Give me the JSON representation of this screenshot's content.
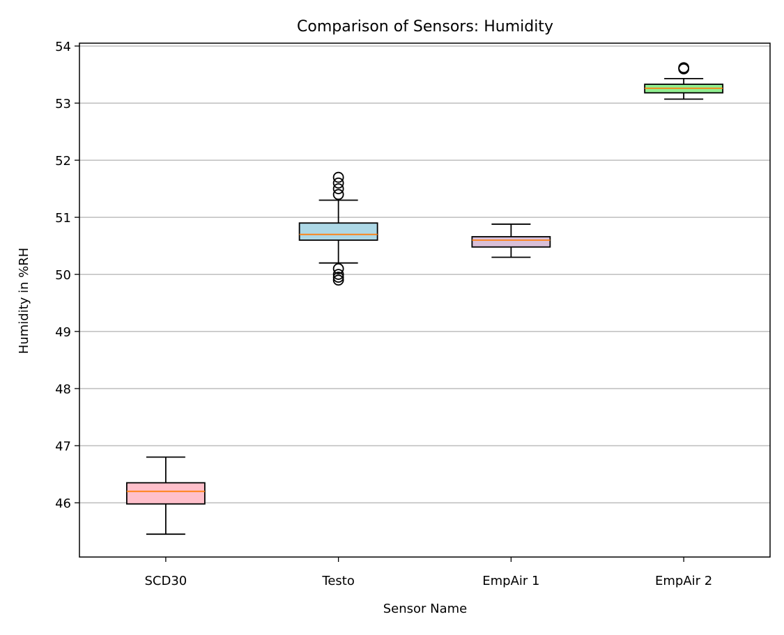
{
  "chart_data": {
    "type": "box",
    "title": "Comparison of Sensors: Humidity",
    "xlabel": "Sensor Name",
    "ylabel": "Humidity in %RH",
    "ylim": [
      45.05,
      54.05
    ],
    "yticks": [
      46,
      47,
      48,
      49,
      50,
      51,
      52,
      53,
      54
    ],
    "grid": "horizontal",
    "categories": [
      "SCD30",
      "Testo",
      "EmpAir 1",
      "EmpAir 2"
    ],
    "boxes": [
      {
        "name": "SCD30",
        "whisker_low": 45.45,
        "q1": 45.98,
        "median": 46.2,
        "q3": 46.35,
        "whisker_high": 46.8,
        "outliers": [],
        "color": "#ffc0cb"
      },
      {
        "name": "Testo",
        "whisker_low": 50.2,
        "q1": 50.6,
        "median": 50.7,
        "q3": 50.9,
        "whisker_high": 51.3,
        "outliers": [
          49.9,
          49.95,
          50.0,
          50.1,
          51.4,
          51.5,
          51.6,
          51.7
        ],
        "color": "#add8e6"
      },
      {
        "name": "EmpAir 1",
        "whisker_low": 50.3,
        "q1": 50.48,
        "median": 50.6,
        "q3": 50.66,
        "whisker_high": 50.88,
        "outliers": [],
        "color": "#d8bfd8"
      },
      {
        "name": "EmpAir 2",
        "whisker_low": 53.07,
        "q1": 53.18,
        "median": 53.26,
        "q3": 53.33,
        "whisker_high": 53.43,
        "outliers": [
          53.6,
          53.62
        ],
        "color": "#90ee90"
      }
    ],
    "median_color": "#ff7f0e",
    "grid_color": "#b0b0b0"
  }
}
